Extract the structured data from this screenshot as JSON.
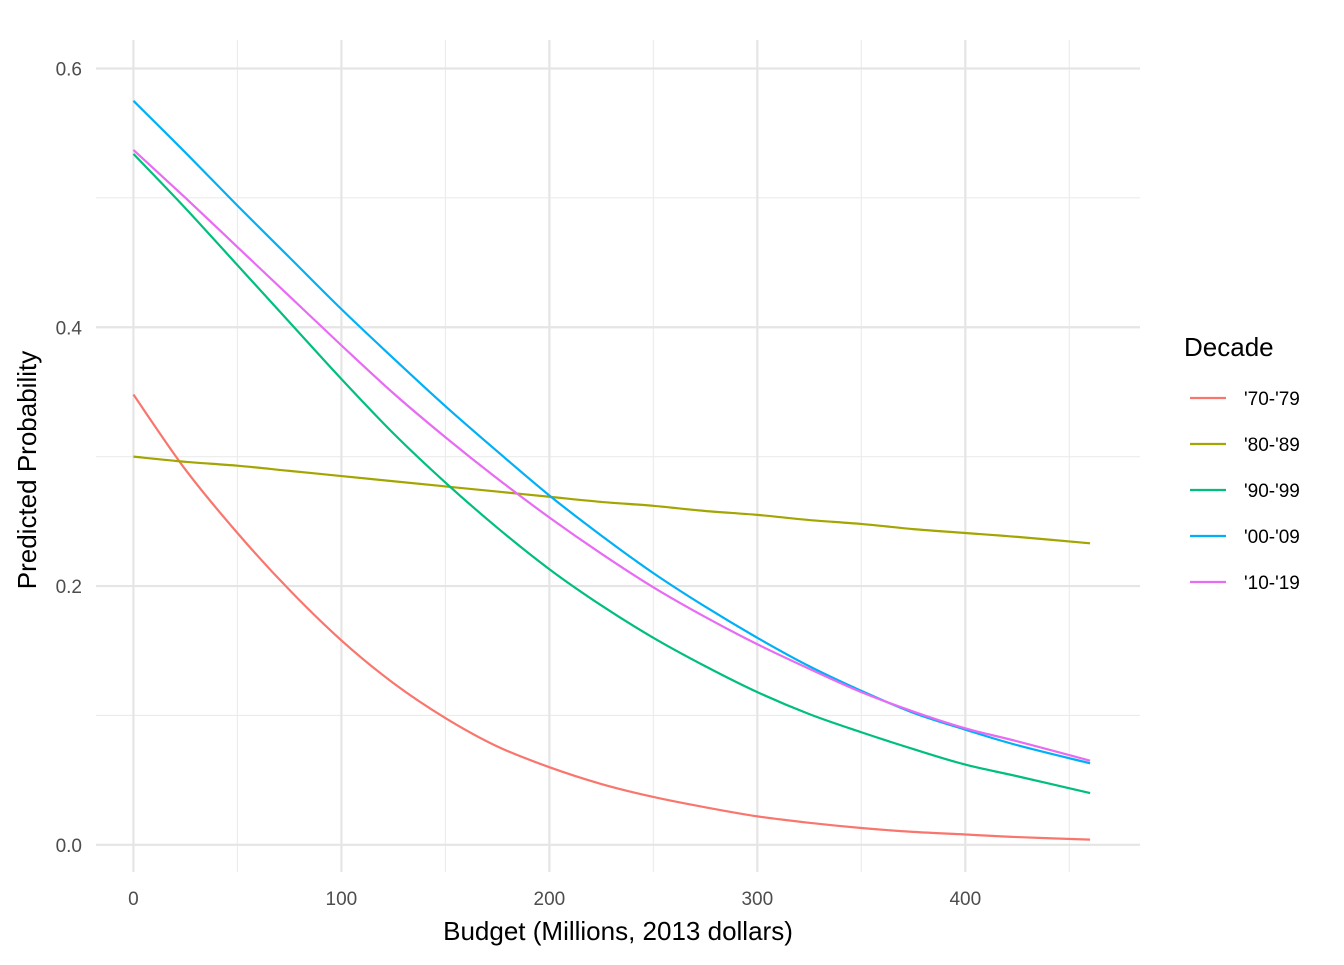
{
  "chart_data": {
    "type": "line",
    "title": "",
    "xlabel": "Budget (Millions, 2013 dollars)",
    "ylabel": "Predicted Probability",
    "xlim": [
      -18,
      484
    ],
    "ylim": [
      -0.021,
      0.622
    ],
    "x_ticks": [
      0,
      100,
      200,
      300,
      400
    ],
    "x_tick_labels": [
      "0",
      "100",
      "200",
      "300",
      "400"
    ],
    "y_ticks": [
      0,
      0.2,
      0.4,
      0.6
    ],
    "y_tick_labels": [
      "0.0",
      "0.2",
      "0.4",
      "0.6"
    ],
    "grid": true,
    "legend": {
      "title": "Decade",
      "position": "right"
    },
    "x": [
      0,
      25,
      50,
      75,
      100,
      125,
      150,
      175,
      200,
      225,
      250,
      275,
      300,
      325,
      350,
      375,
      400,
      425,
      460
    ],
    "series": [
      {
        "name": "'70-'79",
        "color": "#F8766D",
        "values": [
          0.348,
          0.29,
          0.241,
          0.197,
          0.158,
          0.125,
          0.098,
          0.076,
          0.06,
          0.047,
          0.037,
          0.029,
          0.022,
          0.017,
          0.013,
          0.01,
          0.008,
          0.006,
          0.004
        ]
      },
      {
        "name": "'80-'89",
        "color": "#A3A500",
        "values": [
          0.3,
          0.296,
          0.293,
          0.289,
          0.285,
          0.281,
          0.277,
          0.273,
          0.269,
          0.265,
          0.262,
          0.258,
          0.255,
          0.251,
          0.248,
          0.244,
          0.241,
          0.238,
          0.233
        ]
      },
      {
        "name": "'90-'99",
        "color": "#00BF7D",
        "values": [
          0.534,
          0.492,
          0.448,
          0.404,
          0.36,
          0.318,
          0.28,
          0.245,
          0.213,
          0.185,
          0.16,
          0.138,
          0.118,
          0.101,
          0.087,
          0.074,
          0.062,
          0.053,
          0.04
        ]
      },
      {
        "name": "'00-'09",
        "color": "#00B0F6",
        "values": [
          0.575,
          0.535,
          0.494,
          0.454,
          0.414,
          0.376,
          0.339,
          0.304,
          0.27,
          0.239,
          0.21,
          0.184,
          0.16,
          0.138,
          0.119,
          0.102,
          0.089,
          0.077,
          0.063
        ]
      },
      {
        "name": "'10-'19",
        "color": "#E76BF3",
        "values": [
          0.537,
          0.5,
          0.462,
          0.424,
          0.386,
          0.349,
          0.315,
          0.283,
          0.253,
          0.225,
          0.199,
          0.176,
          0.155,
          0.136,
          0.118,
          0.103,
          0.09,
          0.08,
          0.065
        ]
      }
    ]
  }
}
